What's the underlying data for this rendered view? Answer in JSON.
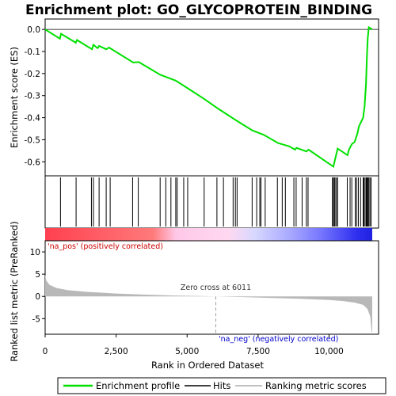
{
  "chart_data": {
    "type": "line",
    "title": "Enrichment plot: GO_GLYCOPROTEIN_BINDING",
    "es_panel": {
      "ylabel": "Enrichment score (ES)",
      "ylim": [
        -0.66,
        0.04
      ],
      "yticks": [
        "0.0",
        "-0.1",
        "-0.2",
        "-0.3",
        "-0.4",
        "-0.5",
        "-0.6"
      ],
      "ytick_values": [
        0.0,
        -0.1,
        -0.2,
        -0.3,
        -0.4,
        -0.5,
        -0.6
      ],
      "line_color": "#00e000",
      "es_curve": [
        [
          0,
          0.0
        ],
        [
          520,
          -0.042
        ],
        [
          560,
          -0.02
        ],
        [
          1080,
          -0.06
        ],
        [
          1120,
          -0.048
        ],
        [
          1650,
          -0.09
        ],
        [
          1700,
          -0.07
        ],
        [
          1850,
          -0.085
        ],
        [
          1900,
          -0.075
        ],
        [
          2150,
          -0.09
        ],
        [
          2250,
          -0.082
        ],
        [
          3100,
          -0.15
        ],
        [
          3300,
          -0.148
        ],
        [
          4050,
          -0.205
        ],
        [
          4600,
          -0.232
        ],
        [
          5000,
          -0.265
        ],
        [
          5600,
          -0.315
        ],
        [
          6100,
          -0.36
        ],
        [
          6700,
          -0.41
        ],
        [
          7300,
          -0.458
        ],
        [
          7700,
          -0.478
        ],
        [
          8200,
          -0.515
        ],
        [
          8600,
          -0.53
        ],
        [
          8800,
          -0.545
        ],
        [
          8850,
          -0.537
        ],
        [
          9200,
          -0.553
        ],
        [
          9280,
          -0.545
        ],
        [
          10150,
          -0.622
        ],
        [
          10200,
          -0.595
        ],
        [
          10300,
          -0.54
        ],
        [
          10650,
          -0.57
        ],
        [
          10700,
          -0.545
        ],
        [
          10800,
          -0.52
        ],
        [
          10900,
          -0.51
        ],
        [
          11000,
          -0.47
        ],
        [
          11050,
          -0.44
        ],
        [
          11200,
          -0.4
        ],
        [
          11250,
          -0.35
        ],
        [
          11300,
          -0.25
        ],
        [
          11330,
          -0.13
        ],
        [
          11360,
          -0.04
        ],
        [
          11400,
          0.01
        ],
        [
          11520,
          0.0
        ]
      ],
      "hits": [
        540,
        1090,
        1630,
        1700,
        1900,
        2150,
        2290,
        3080,
        3280,
        4050,
        4250,
        4430,
        4600,
        4650,
        4880,
        5020,
        5600,
        6050,
        6280,
        6620,
        6700,
        6760,
        7290,
        7450,
        7560,
        7600,
        7750,
        8180,
        8350,
        8460,
        8760,
        8840,
        9050,
        9200,
        9260,
        10120,
        10140,
        10180,
        10210,
        10260,
        10300,
        10640,
        10740,
        10800,
        10920,
        10970,
        11030,
        11110,
        11200,
        11230,
        11270,
        11310,
        11340,
        11370,
        11400,
        11440,
        11480
      ]
    },
    "metric_panel": {
      "ylabel": "Ranked list metric (PreRanked)",
      "ylim": [
        -8.5,
        12.5
      ],
      "yticks": [
        "10",
        "5",
        "0",
        "-5"
      ],
      "ytick_values": [
        10,
        5,
        0,
        -5
      ],
      "fill_color": "#b8b8b8",
      "metric_curve": [
        [
          0,
          4.9
        ],
        [
          40,
          3.6
        ],
        [
          150,
          2.6
        ],
        [
          400,
          1.9
        ],
        [
          800,
          1.4
        ],
        [
          1500,
          1.0
        ],
        [
          2500,
          0.65
        ],
        [
          3500,
          0.4
        ],
        [
          4500,
          0.2
        ],
        [
          5500,
          0.07
        ],
        [
          6011,
          0.0
        ],
        [
          7000,
          -0.15
        ],
        [
          8000,
          -0.35
        ],
        [
          9000,
          -0.55
        ],
        [
          10000,
          -0.8
        ],
        [
          10500,
          -1.05
        ],
        [
          10900,
          -1.4
        ],
        [
          11200,
          -1.9
        ],
        [
          11350,
          -2.8
        ],
        [
          11450,
          -4.5
        ],
        [
          11500,
          -8.0
        ],
        [
          11520,
          -8.0
        ]
      ],
      "zero_cross_rank": 6011,
      "zero_cross_label": "Zero cross at 6011",
      "pos_label": "'na_pos' (positively correlated)",
      "neg_label": "'na_neg' (negatively correlated)",
      "pos_label_color": "#cc0000",
      "neg_label_color": "#0000cc"
    },
    "xaxis": {
      "xlabel": "Rank in Ordered Dataset",
      "xlim": [
        0,
        11520
      ],
      "xticks": [
        "0",
        "2,500",
        "5,000",
        "7,500",
        "10,000"
      ],
      "xtick_values": [
        0,
        2500,
        5000,
        7500,
        10000
      ]
    },
    "heatbar": {
      "colors": [
        "#ff4050",
        "#ff7a7a",
        "#ffc8e8",
        "#d0d0ff",
        "#8a8aff",
        "#3030f0"
      ]
    },
    "legend": {
      "items": [
        {
          "label": "Enrichment profile",
          "color": "#00e000"
        },
        {
          "label": "Hits",
          "color": "#000000"
        },
        {
          "label": "Ranking metric scores",
          "color": "#c0c0c0"
        }
      ],
      "placement": "bottom"
    }
  }
}
